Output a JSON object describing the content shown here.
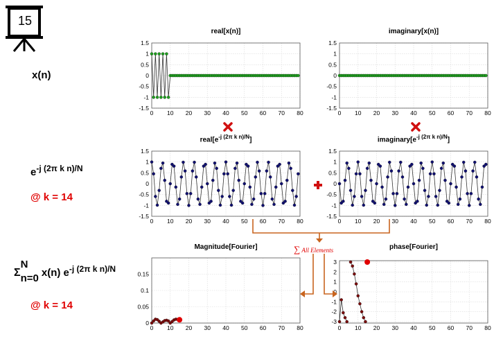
{
  "slide": {
    "number": "15"
  },
  "rows": {
    "signal": {
      "label": "x(n)"
    },
    "kernel": {
      "base": "e",
      "exponent": "-j (2π k n)/N",
      "k_label": "@ k = 14"
    },
    "fourier": {
      "sigma": "Σ",
      "sigma_top": "N",
      "sigma_bottom": "n=0",
      "body": "x(n) e",
      "exponent": "-j (2π k n)/N",
      "k_label": "@ k = 14"
    }
  },
  "sum_annotation": {
    "symbol": "∑",
    "text": "All Elements"
  },
  "colors": {
    "red": "#e00000",
    "orange": "#c8641e",
    "green_marker": "#1f9e1f",
    "blue_marker": "#101070",
    "darkred_marker": "#7a0c0c"
  },
  "icons": [
    "presentation-board-icon",
    "multiply-icon",
    "plus-icon"
  ],
  "chart_data": [
    {
      "id": "real_x",
      "type": "line",
      "title": "real[x(n)]",
      "xlim": [
        0,
        80
      ],
      "ylim": [
        -1.5,
        1.5
      ],
      "xticks": [
        "0",
        "10",
        "20",
        "30",
        "40",
        "50",
        "60",
        "70",
        "80"
      ],
      "yticks": [
        "1.5",
        "1",
        "0.5",
        "0",
        "-0.5",
        "-1",
        "-1.5"
      ],
      "grid": true,
      "series": [
        {
          "marker_color": "#1f9e1f",
          "n_points": 80,
          "rule": "values = 1,-1 alternating for n<10 (both lines drawn at ±1), 0 for n≥10"
        }
      ]
    },
    {
      "id": "imag_x",
      "type": "line",
      "title": "imaginary[x(n)]",
      "xlim": [
        0,
        80
      ],
      "ylim": [
        -1.5,
        1.5
      ],
      "xticks": [
        "0",
        "10",
        "20",
        "30",
        "40",
        "50",
        "60",
        "70",
        "80"
      ],
      "yticks": [
        "1.5",
        "1",
        "0.5",
        "0",
        "-0.5",
        "-1",
        "-1.5"
      ],
      "grid": true,
      "series": [
        {
          "marker_color": "#1f9e1f",
          "n_points": 80,
          "rule": "all zero"
        }
      ]
    },
    {
      "id": "real_kernel",
      "type": "line",
      "title_base": "real[e",
      "title_sup": "-j (2π k n)/N",
      "title_end": "]",
      "xlim": [
        0,
        80
      ],
      "ylim": [
        -1.5,
        1.5
      ],
      "xticks": [
        "0",
        "10",
        "20",
        "30",
        "40",
        "50",
        "60",
        "70",
        "80"
      ],
      "yticks": [
        "1.5",
        "1",
        "0.5",
        "0",
        "-0.5",
        "-1",
        "-1.5"
      ],
      "grid": true,
      "series": [
        {
          "marker_color": "#101070",
          "n_points": 80,
          "rule": "cos(2π·14·n/80)"
        }
      ]
    },
    {
      "id": "imag_kernel",
      "type": "line",
      "title_base": "imaginary[e",
      "title_sup": "-j (2π k n)/N",
      "title_end": "]",
      "xlim": [
        0,
        80
      ],
      "ylim": [
        -1.5,
        1.5
      ],
      "xticks": [
        "0",
        "10",
        "20",
        "30",
        "40",
        "50",
        "60",
        "70",
        "80"
      ],
      "yticks": [
        "1.5",
        "1",
        "0.5",
        "0",
        "-0.5",
        "-1",
        "-1.5"
      ],
      "grid": true,
      "series": [
        {
          "marker_color": "#101070",
          "n_points": 80,
          "rule": "-sin(2π·14·n/80)"
        }
      ]
    },
    {
      "id": "magnitude",
      "type": "line",
      "title": "Magnitude[Fourier]",
      "xlim": [
        0,
        80
      ],
      "ylim": [
        0,
        0.2
      ],
      "xticks": [
        "0",
        "10",
        "20",
        "30",
        "40",
        "50",
        "60",
        "70",
        "80"
      ],
      "yticks": [
        "0.15",
        "0.1",
        "0.05",
        "0"
      ],
      "grid": true,
      "series": [
        {
          "marker_color": "#7a0c0c",
          "x": [
            0,
            1,
            2,
            3,
            4,
            5,
            6,
            7,
            8,
            9,
            10,
            11,
            12,
            13,
            14
          ],
          "y": [
            0.0,
            0.0065,
            0.0118,
            0.0105,
            0.0055,
            0.0,
            0.0035,
            0.0075,
            0.0085,
            0.0065,
            0.0,
            0.0048,
            0.0095,
            0.0118,
            0.0112
          ]
        }
      ],
      "highlight": {
        "x": 15,
        "y": 0.01,
        "color": "#e00000"
      }
    },
    {
      "id": "phase",
      "type": "line",
      "title": "phase[Fourier]",
      "xlim": [
        0,
        80
      ],
      "ylim": [
        -3.14,
        3.14
      ],
      "xticks": [
        "0",
        "10",
        "20",
        "30",
        "40",
        "50",
        "60",
        "70",
        "80"
      ],
      "yticks": [
        "3",
        "2",
        "1",
        "0",
        "-1",
        "-2",
        "-3"
      ],
      "grid": true,
      "series": [
        {
          "marker_color": "#7a0c0c",
          "x": [
            0,
            1,
            2,
            3,
            4,
            5,
            6,
            7,
            8,
            9,
            10,
            11,
            12,
            13,
            14
          ],
          "y": [
            -3.0,
            -0.8,
            -2.1,
            -2.6,
            -3.0,
            null,
            3.0,
            2.6,
            1.8,
            0.8,
            -0.4,
            -1.2,
            -2.0,
            -2.6,
            -3.0
          ]
        }
      ],
      "highlight": {
        "x": 15,
        "y": 3.0,
        "color": "#e00000"
      }
    }
  ]
}
